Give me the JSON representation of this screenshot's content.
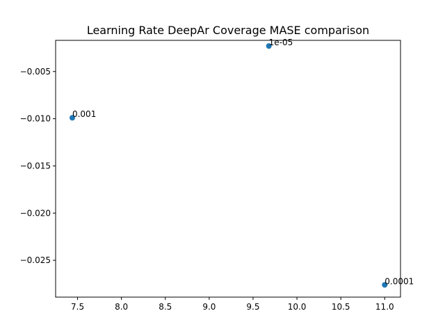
{
  "chart_data": {
    "type": "scatter",
    "title": "Learning Rate DeepAr Coverage MASE comparison",
    "xlabel": "",
    "ylabel": "",
    "xlim": [
      7.25,
      11.18
    ],
    "ylim": [
      -0.0289,
      -0.0017
    ],
    "x_ticks": [
      7.5,
      8.0,
      8.5,
      9.0,
      9.5,
      10.0,
      10.5,
      11.0
    ],
    "x_tick_labels": [
      "7.5",
      "8.0",
      "8.5",
      "9.0",
      "9.5",
      "10.0",
      "10.5",
      "11.0"
    ],
    "y_ticks": [
      -0.005,
      -0.01,
      -0.015,
      -0.02,
      -0.025
    ],
    "y_tick_labels": [
      "−0.005",
      "−0.010",
      "−0.015",
      "−0.020",
      "−0.025"
    ],
    "grid": false,
    "marker_color": "#1f77b4",
    "points": [
      {
        "label": "1e-05",
        "x": 9.68,
        "y": -0.0023
      },
      {
        "label": "0.001",
        "x": 7.44,
        "y": -0.0099
      },
      {
        "label": "0.0001",
        "x": 11.0,
        "y": -0.0276
      }
    ]
  }
}
